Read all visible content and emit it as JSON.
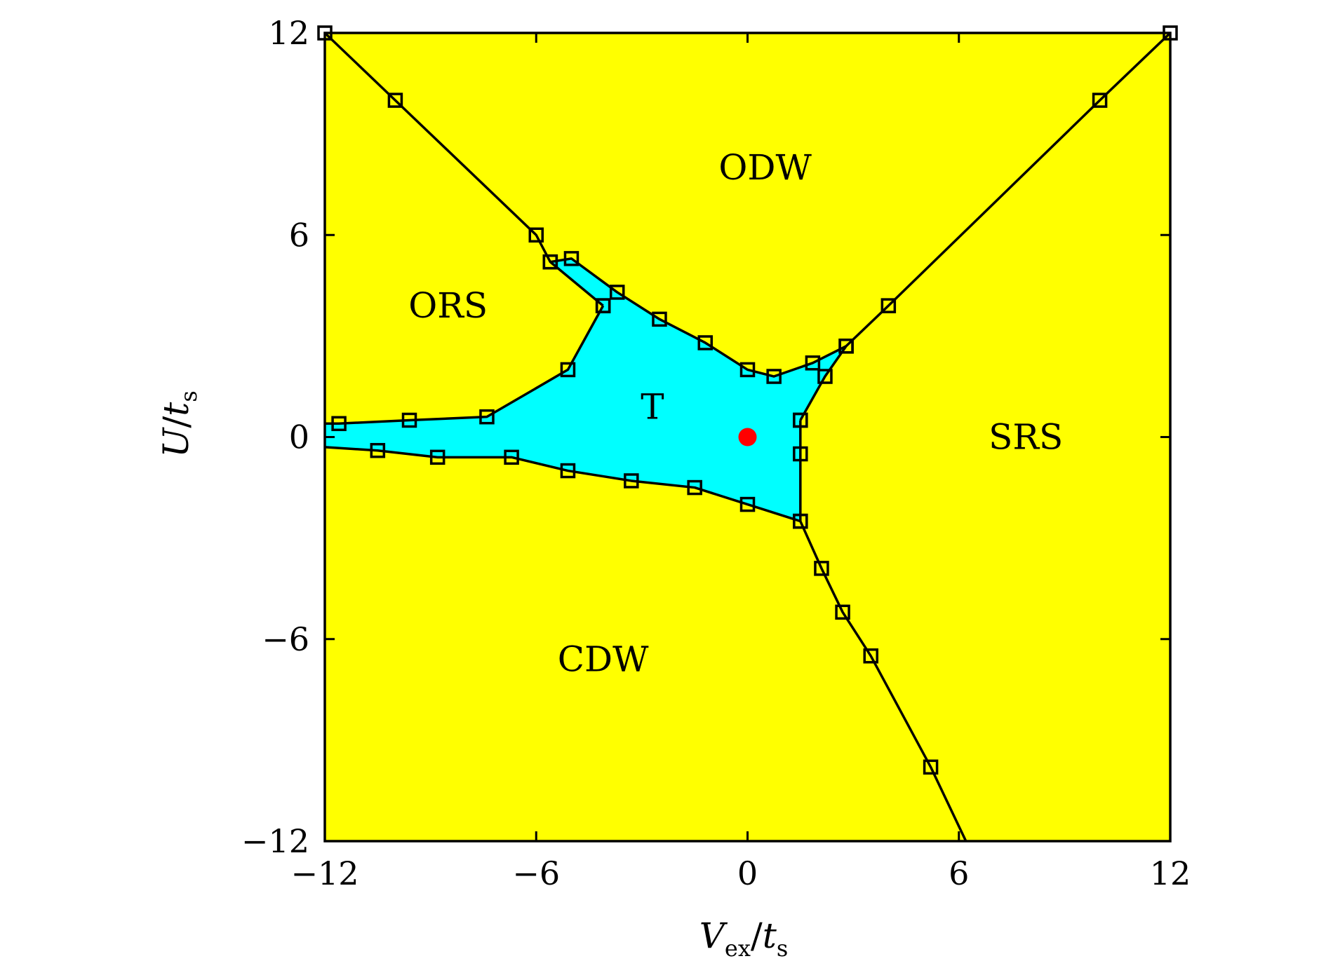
{
  "chart_data": {
    "type": "scatter",
    "title": "",
    "xlabel": {
      "main": "V",
      "sub": "ex",
      "sep": "/",
      "main2": "t",
      "sub2": "s"
    },
    "ylabel": {
      "main": "U",
      "sep": "/",
      "main2": "t",
      "sub2": "s"
    },
    "xlim": [
      -12,
      12
    ],
    "ylim": [
      -12,
      12
    ],
    "xticks": [
      -12,
      -6,
      0,
      6,
      12
    ],
    "yticks": [
      -12,
      -6,
      0,
      6,
      12
    ],
    "xtick_labels": [
      "−12",
      "−6",
      "0",
      "6",
      "12"
    ],
    "ytick_labels": [
      "−12",
      "−6",
      "0",
      "6",
      "12"
    ],
    "grid": false,
    "colors": {
      "background_phase": "#ffff00",
      "T_phase": "#00ffff",
      "marker": "#000000",
      "point": "#ff0000"
    },
    "regions": [
      {
        "label": "ODW",
        "x": 0.5,
        "y": 8
      },
      {
        "label": "ORS",
        "x": -8.5,
        "y": 3.9
      },
      {
        "label": "T",
        "x": -2.7,
        "y": 0.9
      },
      {
        "label": "SRS",
        "x": 7.9,
        "y": 0
      },
      {
        "label": "CDW",
        "x": -4.1,
        "y": -6.6
      }
    ],
    "series": [
      {
        "x": [
          -12,
          -10,
          -6,
          -5.6,
          -4.1
        ],
        "y": [
          12,
          10,
          6,
          5.2,
          3.9
        ]
      },
      {
        "x": [
          12,
          10,
          4,
          2.8,
          2.2,
          1.5
        ],
        "y": [
          12,
          10,
          3.9,
          2.7,
          1.8,
          0.5
        ]
      },
      {
        "x": [
          1.5,
          1.5,
          1.5,
          2.1,
          2.7,
          3.5,
          5.2,
          6.2
        ],
        "y": [
          0.5,
          -0.5,
          -2.5,
          -3.9,
          -5.2,
          -6.5,
          -9.8,
          -12
        ]
      },
      {
        "x": [
          -12,
          -11.6,
          -9.6,
          -7.4,
          -5.1,
          -4.1
        ],
        "y": [
          0.4,
          0.4,
          0.5,
          0.6,
          2.0,
          3.9
        ]
      },
      {
        "x": [
          -12,
          -10.5,
          -8.8,
          -6.7,
          -5.1,
          -3.3,
          -1.5,
          0,
          1.5
        ],
        "y": [
          -0.3,
          -0.4,
          -0.6,
          -0.6,
          -1.0,
          -1.3,
          -1.5,
          -2.0,
          -2.5
        ]
      },
      {
        "x": [
          -5.6,
          -5,
          -3.7,
          -2.5,
          -1.2,
          0,
          0.75,
          1.85,
          2.8
        ],
        "y": [
          5.2,
          5.3,
          4.3,
          3.5,
          2.8,
          2.0,
          1.8,
          2.2,
          2.7
        ]
      },
      {
        "x": [
          0
        ],
        "y": [
          0
        ]
      }
    ],
    "T_region_boundary": {
      "x": [
        -12,
        -11.6,
        -9.6,
        -7.4,
        -5.1,
        -4.1,
        -5.6,
        -5,
        -3.7,
        -2.5,
        -1.2,
        0,
        0.75,
        1.85,
        2.8,
        2.2,
        1.5,
        1.5,
        1.5,
        0,
        -1.5,
        -3.3,
        -5.1,
        -6.7,
        -8.8,
        -10.5,
        -12
      ],
      "y": [
        0.4,
        0.4,
        0.5,
        0.6,
        2.0,
        3.9,
        5.2,
        5.3,
        4.3,
        3.5,
        2.8,
        2.0,
        1.8,
        2.2,
        2.7,
        1.8,
        0.5,
        -0.5,
        -2.5,
        -2.0,
        -1.5,
        -1.3,
        -1.0,
        -0.6,
        -0.6,
        -0.4,
        -0.3
      ]
    }
  }
}
